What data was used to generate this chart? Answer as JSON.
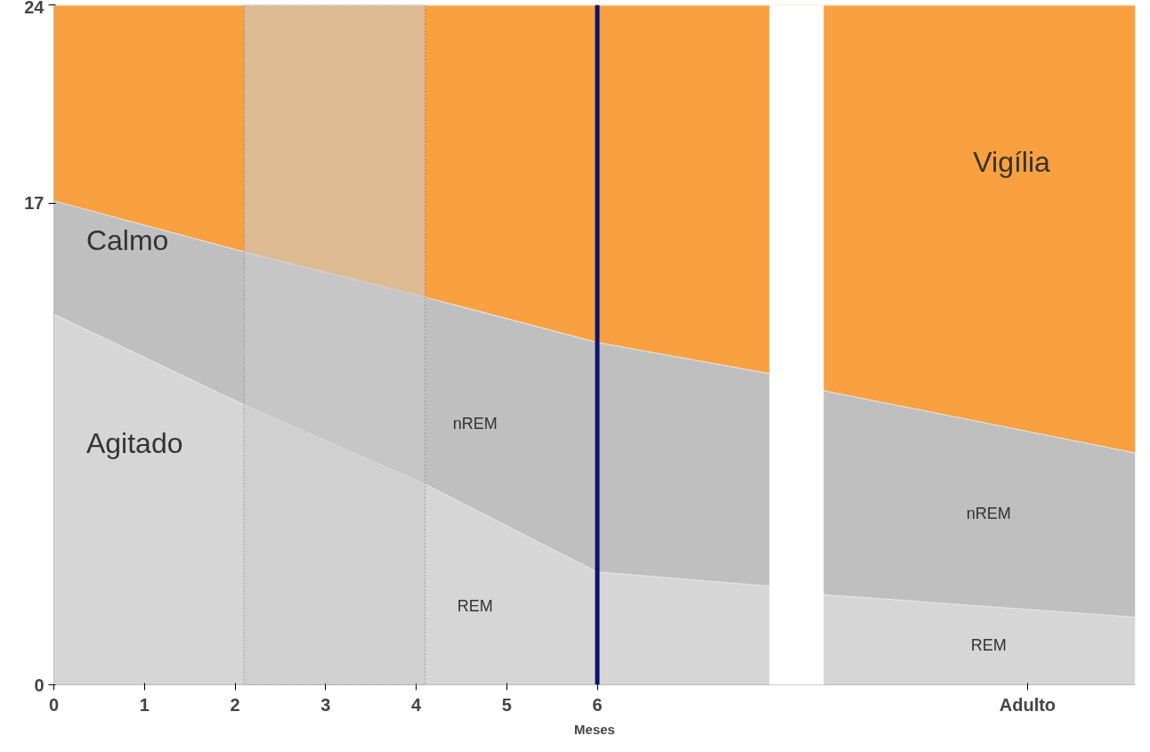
{
  "chart_data": {
    "type": "area",
    "stacked": true,
    "xlabel": "Meses",
    "x": [
      0,
      2.1,
      4.1,
      6,
      7.9,
      8.5,
      11.94
    ],
    "series": [
      {
        "name": "Agitado",
        "color": "#d6d6d6",
        "values": [
          13.1,
          9.9,
          7.1,
          4.0,
          3.5,
          3.2,
          2.4
        ]
      },
      {
        "name": "Calmo",
        "color": "#bfbfbf",
        "values": [
          4.0,
          5.4,
          6.6,
          8.1,
          7.5,
          7.2,
          5.8
        ]
      },
      {
        "name": "Vigília",
        "color": "#f9a040",
        "values": [
          6.9,
          8.7,
          10.3,
          11.9,
          13.0,
          13.6,
          15.8
        ]
      }
    ],
    "xlim": [
      0,
      11.94
    ],
    "ylim": [
      0,
      24
    ],
    "xticks": [
      0,
      1,
      2,
      3,
      4,
      5,
      6,
      {
        "value": 10.75,
        "label": "Adulto"
      }
    ],
    "yticks": [
      0,
      17,
      24
    ],
    "ref_lines": [
      {
        "axis": "x",
        "value": 6,
        "color": "#0b1670"
      }
    ],
    "bands": [
      {
        "axis": "x",
        "from": 2.1,
        "to": 4.1,
        "color": "#cccccc"
      },
      {
        "axis": "x",
        "from": 7.9,
        "to": 8.5,
        "color": "#ffffff"
      }
    ],
    "annotations": [
      "nREM",
      "REM",
      "nREM",
      "REM"
    ]
  }
}
